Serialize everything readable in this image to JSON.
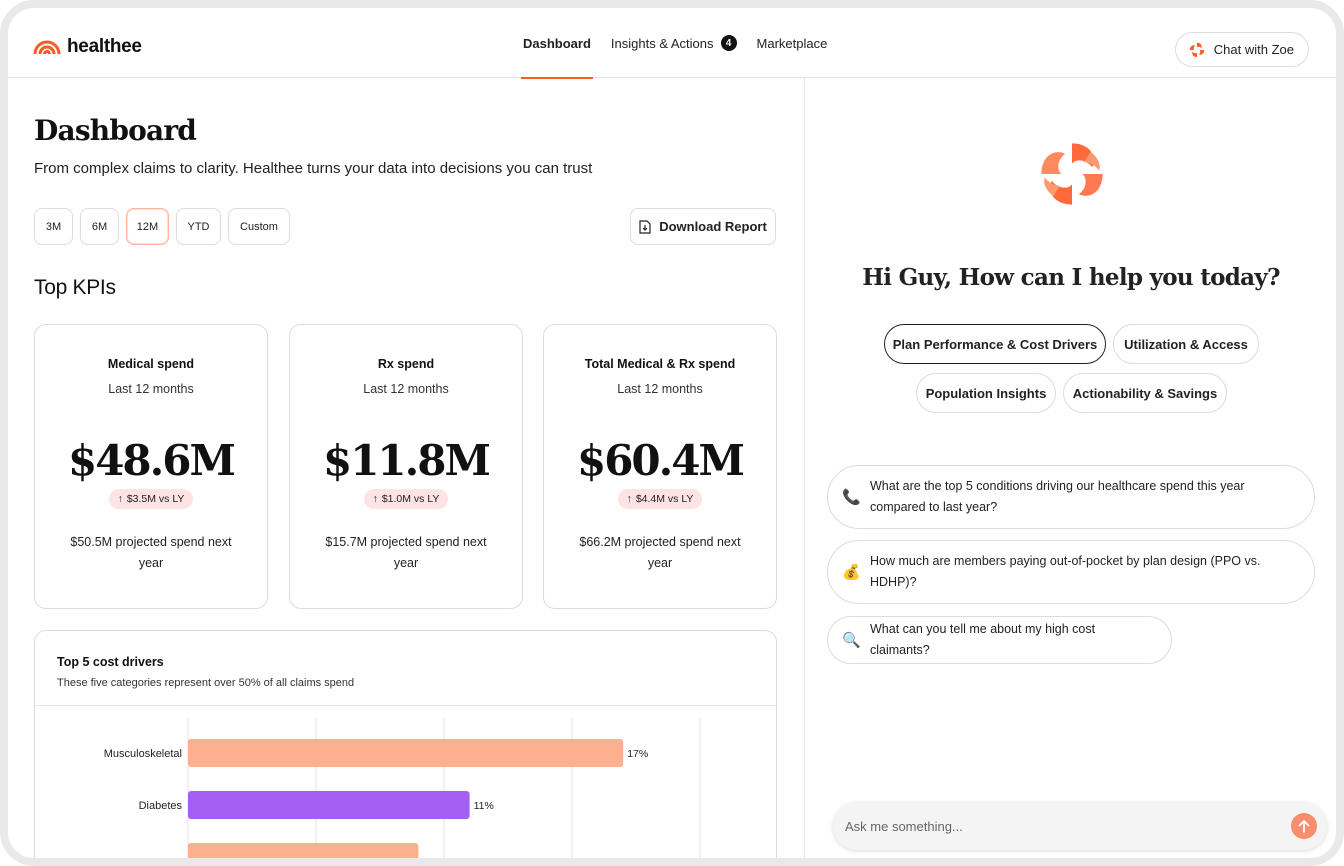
{
  "brand": {
    "name": "healthee",
    "accent": "#ff5a2a"
  },
  "nav": {
    "items": [
      {
        "label": "Dashboard",
        "active": true
      },
      {
        "label": "Insights & Actions",
        "badge": "4"
      },
      {
        "label": "Marketplace"
      }
    ],
    "chat_button": "Chat with Zoe"
  },
  "dashboard": {
    "title": "Dashboard",
    "subtitle": "From complex claims to clarity. Healthee turns your data into decisions you can trust",
    "ranges": [
      "3M",
      "6M",
      "12M",
      "YTD",
      "Custom"
    ],
    "selected_range": "12M",
    "download_label": "Download Report",
    "kpi_section_title": "Top KPIs",
    "kpis": [
      {
        "name": "Medical spend",
        "period": "Last 12 months",
        "value": "$48.6M",
        "delta": "$3.5M vs LY",
        "projection": "$50.5M projected spend next year"
      },
      {
        "name": "Rx spend",
        "period": "Last 12 months",
        "value": "$11.8M",
        "delta": "$1.0M vs LY",
        "projection": "$15.7M projected spend next year"
      },
      {
        "name": "Total Medical & Rx spend",
        "period": "Last 12 months",
        "value": "$60.4M",
        "delta": "$4.4M vs LY",
        "projection": "$66.2M projected spend next year"
      }
    ],
    "drivers": {
      "title": "Top 5 cost drivers",
      "subtitle": "These five categories represent over 50% of all claims spend"
    }
  },
  "chart_data": {
    "type": "bar",
    "orientation": "horizontal",
    "title": "Top 5 cost drivers",
    "categories": [
      "Musculoskeletal",
      "Diabetes"
    ],
    "values": [
      17,
      11
    ],
    "value_labels": [
      "17%",
      "11%"
    ],
    "colors": [
      "#fdb08f",
      "#a45ff2"
    ],
    "xlim": [
      0,
      20
    ],
    "grid": true
  },
  "assistant": {
    "greeting": "Hi Guy, How can I help you today?",
    "topics": [
      {
        "label": "Plan Performance & Cost Drivers",
        "selected": true
      },
      {
        "label": "Utilization & Access"
      },
      {
        "label": "Population Insights"
      },
      {
        "label": "Actionability & Savings"
      }
    ],
    "questions": [
      {
        "icon": "phone-icon",
        "glyph": "📞",
        "text": "What are the top 5 conditions driving our healthcare spend this year compared to last year?"
      },
      {
        "icon": "money-bag-icon",
        "glyph": "💰",
        "text": "How much are members paying out-of-pocket by plan design (PPO vs. HDHP)?"
      },
      {
        "icon": "magnifier-icon",
        "glyph": "🔍",
        "text": "What can you tell me about my high cost claimants?"
      }
    ],
    "input_placeholder": "Ask me something..."
  }
}
